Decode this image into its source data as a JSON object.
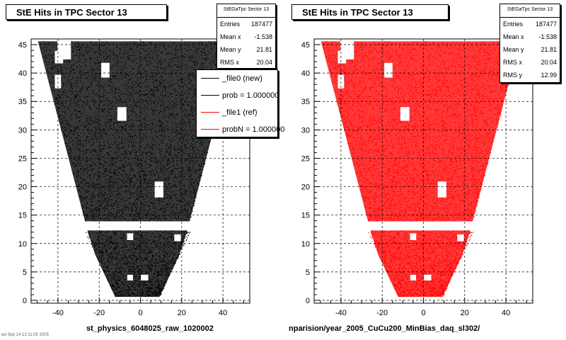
{
  "panels": [
    {
      "id": "left",
      "title": "StE Hits in TPC Sector 13",
      "color": "#000000",
      "stats": {
        "header": "StEGaTpc Sector 13",
        "rows": [
          {
            "label": "Entries",
            "value": "187477"
          },
          {
            "label": "Mean x",
            "value": "-1.538"
          },
          {
            "label": "Mean y",
            "value": "21.81"
          },
          {
            "label": "RMS x",
            "value": "20.04"
          }
        ]
      },
      "legend": [
        {
          "label": "_file0 (new)",
          "color": "#000000"
        },
        {
          "label": "prob = 1.000000",
          "color": "#000000"
        },
        {
          "label": "_file1 (ref)",
          "color": "#ff0000"
        },
        {
          "label": "probN = 1.000000",
          "color": "#ff0000"
        }
      ],
      "footer": "st_physics_6048025_raw_1020002"
    },
    {
      "id": "right",
      "title": "StE Hits in TPC Sector 13",
      "color": "#ff0000",
      "stats": {
        "header": "StEGaTpc Sector 13",
        "rows": [
          {
            "label": "Entries",
            "value": "187477"
          },
          {
            "label": "Mean x",
            "value": "-1.538"
          },
          {
            "label": "Mean y",
            "value": "21.81"
          },
          {
            "label": "RMS x",
            "value": "20.04"
          },
          {
            "label": "RMS y",
            "value": "12.99"
          }
        ]
      },
      "footer": "nparision/year_2005_CuCu200_MinBias_daq_sl302/"
    }
  ],
  "corner_note": "ed Sep 14 12:11:05 2005",
  "chart_data": {
    "type": "scatter",
    "x_ticks": [
      -40,
      -20,
      0,
      20,
      40
    ],
    "y_ticks": [
      0,
      5,
      10,
      15,
      20,
      25,
      30,
      35,
      40,
      45
    ],
    "x_tick_labels": [
      "-40",
      "-20",
      "0",
      "20",
      "40"
    ],
    "y_tick_labels": [
      "0",
      "5",
      "10",
      "15",
      "20",
      "25",
      "30",
      "35",
      "40",
      "45"
    ],
    "xlim": [
      -53,
      53
    ],
    "ylim": [
      -0.5,
      46
    ],
    "grid": true,
    "series": [
      {
        "panel": "left",
        "color": "#000000"
      },
      {
        "panel": "right",
        "color": "#ff0000"
      }
    ]
  }
}
